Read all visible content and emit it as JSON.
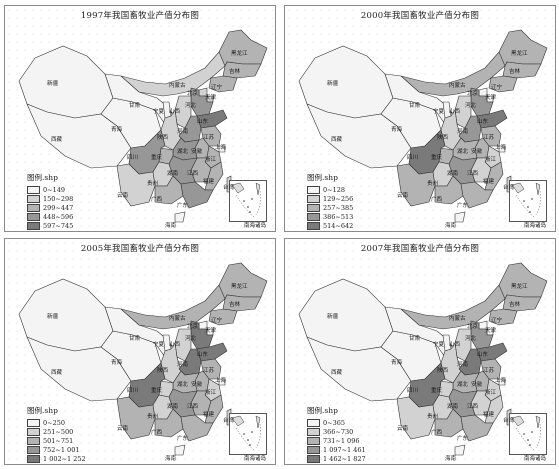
{
  "legend_title": "图例.shp",
  "inset_label": "南海诸岛",
  "province_labels": [
    "新疆",
    "西藏",
    "青海",
    "四川",
    "云南",
    "贵州",
    "广西",
    "广东",
    "湖南",
    "湖北",
    "江西",
    "福建",
    "浙江",
    "安徽",
    "江苏",
    "山东",
    "河南",
    "山西",
    "陕西",
    "宁夏",
    "甘肃",
    "内蒙古",
    "黑龙江",
    "吉林",
    "辽宁",
    "河北",
    "北京",
    "天津",
    "重庆",
    "海南",
    "台湾",
    "上海"
  ],
  "panels": [
    {
      "title": "1997年我国畜牧业产值分布图",
      "legend": [
        "0~149",
        "150~298",
        "299~447",
        "448~596",
        "597~745"
      ],
      "classes": {
        "xinjiang": 1,
        "xizang": 1,
        "qinghai": 1,
        "gansu": 1,
        "ningxia": 1,
        "neimenggu": 2,
        "heilongjiang": 3,
        "jilin": 3,
        "liaoning": 3,
        "hebei": 4,
        "beijing": 2,
        "tianjin": 2,
        "shanxi": 2,
        "shandong": 5,
        "henan": 4,
        "shaanxi": 2,
        "sichuan": 4,
        "chongqing": 3,
        "yunnan": 2,
        "guizhou": 2,
        "guangxi": 3,
        "guangdong": 4,
        "hunan": 4,
        "hubei": 4,
        "jiangxi": 3,
        "fujian": 3,
        "zhejiang": 3,
        "anhui": 3,
        "jiangsu": 3,
        "shanghai": 1,
        "hainan": 1,
        "taiwan": 2
      }
    },
    {
      "title": "2000年我国畜牧业产值分布图",
      "legend": [
        "0~128",
        "129~256",
        "257~385",
        "386~513",
        "514~642"
      ],
      "classes": {
        "xinjiang": 1,
        "xizang": 1,
        "qinghai": 1,
        "gansu": 1,
        "ningxia": 1,
        "neimenggu": 3,
        "heilongjiang": 3,
        "jilin": 3,
        "liaoning": 3,
        "hebei": 4,
        "beijing": 1,
        "tianjin": 1,
        "shanxi": 2,
        "shandong": 5,
        "henan": 4,
        "shaanxi": 2,
        "sichuan": 5,
        "chongqing": 3,
        "yunnan": 3,
        "guizhou": 2,
        "guangxi": 3,
        "guangdong": 3,
        "hunan": 4,
        "hubei": 3,
        "jiangxi": 2,
        "fujian": 3,
        "zhejiang": 2,
        "anhui": 3,
        "jiangsu": 3,
        "shanghai": 1,
        "hainan": 1,
        "taiwan": 2
      }
    },
    {
      "title": "2005年我国畜牧业产值分布图",
      "legend": [
        "0~250",
        "251~500",
        "501~751",
        "752~1 001",
        "1 002~1 252"
      ],
      "classes": {
        "xinjiang": 1,
        "xizang": 1,
        "qinghai": 1,
        "gansu": 1,
        "ningxia": 1,
        "neimenggu": 3,
        "heilongjiang": 3,
        "jilin": 3,
        "liaoning": 3,
        "hebei": 5,
        "beijing": 1,
        "tianjin": 1,
        "shanxi": 2,
        "shandong": 5,
        "henan": 5,
        "shaanxi": 2,
        "sichuan": 5,
        "chongqing": 2,
        "yunnan": 3,
        "guizhou": 2,
        "guangxi": 3,
        "guangdong": 3,
        "hunan": 4,
        "hubei": 3,
        "jiangxi": 3,
        "fujian": 3,
        "zhejiang": 2,
        "anhui": 3,
        "jiangsu": 3,
        "shanghai": 1,
        "hainan": 1,
        "taiwan": 2
      }
    },
    {
      "title": "2007年我国畜牧业产值分布图",
      "legend": [
        "0~365",
        "366~730",
        "731~1 096",
        "1 097~1 461",
        "1 462~1 827"
      ],
      "classes": {
        "xinjiang": 1,
        "xizang": 1,
        "qinghai": 1,
        "gansu": 1,
        "ningxia": 1,
        "neimenggu": 3,
        "heilongjiang": 3,
        "jilin": 3,
        "liaoning": 3,
        "hebei": 4,
        "beijing": 1,
        "tianjin": 1,
        "shanxi": 2,
        "shandong": 5,
        "henan": 5,
        "shaanxi": 2,
        "sichuan": 5,
        "chongqing": 2,
        "yunnan": 2,
        "guizhou": 2,
        "guangxi": 3,
        "guangdong": 3,
        "hunan": 4,
        "hubei": 3,
        "jiangxi": 2,
        "fujian": 2,
        "zhejiang": 2,
        "anhui": 3,
        "jiangsu": 3,
        "shanghai": 1,
        "hainan": 1,
        "taiwan": 2
      }
    }
  ]
}
